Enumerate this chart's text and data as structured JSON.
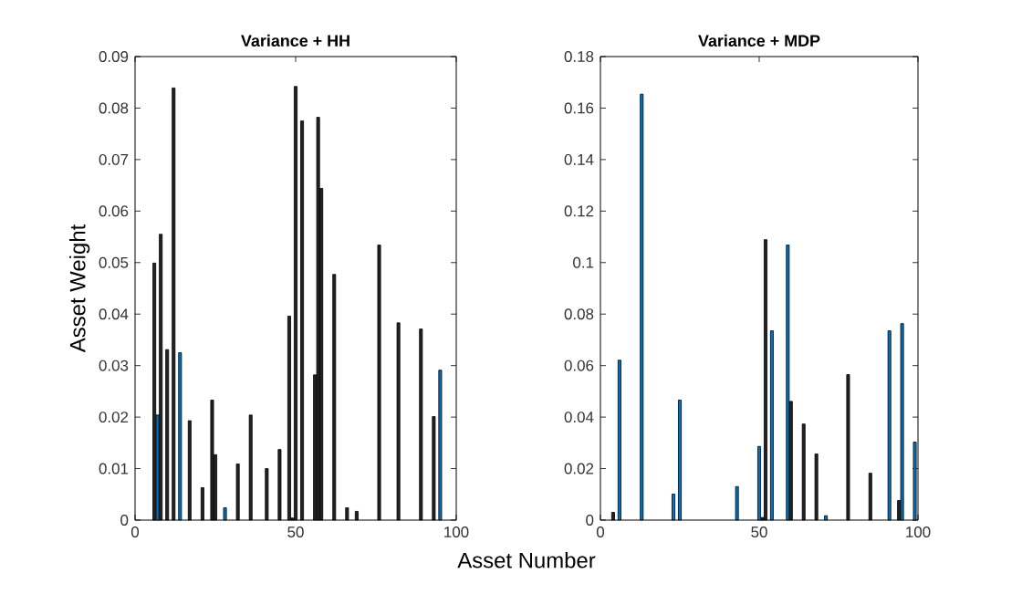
{
  "chart_data": [
    {
      "type": "bar",
      "title": "Variance + HH",
      "ylabel": "Asset Weight",
      "xlabel": "Asset Number",
      "x": [
        6,
        7,
        8,
        10,
        12,
        14,
        17,
        21,
        24,
        25,
        28,
        32,
        36,
        41,
        45,
        48,
        49,
        50,
        52,
        56,
        57,
        58,
        62,
        66,
        69,
        76,
        82,
        89,
        93,
        95
      ],
      "values": [
        0.0499,
        0.0204,
        0.0555,
        0.0331,
        0.0839,
        0.0325,
        0.0193,
        0.0063,
        0.0233,
        0.0127,
        0.0024,
        0.0109,
        0.0204,
        0.01,
        0.0137,
        0.0396,
        0.0004,
        0.0842,
        0.0775,
        0.0282,
        0.0782,
        0.0644,
        0.0477,
        0.0024,
        0.0017,
        0.0534,
        0.0383,
        0.0371,
        0.0201,
        0.0291
      ],
      "colors": [
        "#222222",
        "#0072bd",
        "#222222",
        "#222222",
        "#222222",
        "#0072bd",
        "#222222",
        "#222222",
        "#222222",
        "#222222",
        "#0072bd",
        "#222222",
        "#222222",
        "#222222",
        "#222222",
        "#222222",
        "#222222",
        "#222222",
        "#222222",
        "#222222",
        "#222222",
        "#222222",
        "#222222",
        "#222222",
        "#222222",
        "#222222",
        "#222222",
        "#222222",
        "#222222",
        "#0072bd"
      ],
      "xlim": [
        0,
        100
      ],
      "xticks": [
        0,
        50,
        100
      ],
      "ylim": [
        0,
        0.09
      ],
      "yticks": [
        0,
        0.01,
        0.02,
        0.03,
        0.04,
        0.05,
        0.06,
        0.07,
        0.08,
        0.09
      ]
    },
    {
      "type": "bar",
      "title": "Variance + MDP",
      "x": [
        4,
        6,
        13,
        23,
        25,
        43,
        50,
        51,
        52,
        54,
        59,
        60,
        64,
        68,
        71,
        78,
        85,
        91,
        94,
        95,
        99
      ],
      "values": [
        0.003,
        0.0621,
        0.1654,
        0.0101,
        0.0466,
        0.013,
        0.0286,
        0.001,
        0.1089,
        0.0735,
        0.1068,
        0.0461,
        0.0373,
        0.0257,
        0.0017,
        0.0565,
        0.0182,
        0.0735,
        0.0076,
        0.0763,
        0.0303
      ],
      "colors": [
        "#222222",
        "#0072bd",
        "#0072bd",
        "#0072bd",
        "#0072bd",
        "#0072bd",
        "#0072bd",
        "#222222",
        "#222222",
        "#0072bd",
        "#0072bd",
        "#222222",
        "#222222",
        "#222222",
        "#0072bd",
        "#222222",
        "#222222",
        "#0072bd",
        "#222222",
        "#0072bd",
        "#0072bd"
      ],
      "xlim": [
        0,
        100
      ],
      "xticks": [
        0,
        50,
        100
      ],
      "ylim": [
        0,
        0.18
      ],
      "yticks": [
        0,
        0.02,
        0.04,
        0.06,
        0.08,
        0.1,
        0.12,
        0.14,
        0.16,
        0.18
      ]
    }
  ]
}
